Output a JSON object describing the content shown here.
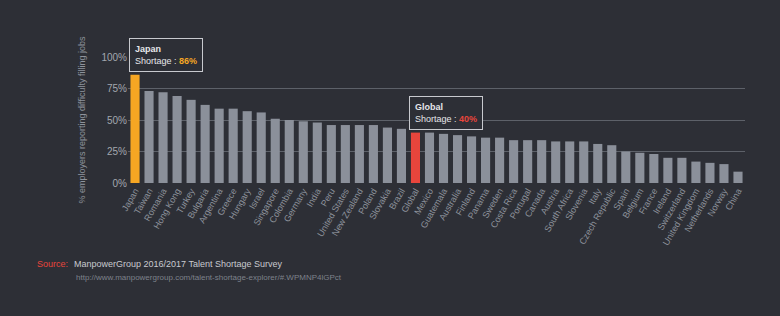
{
  "chart_data": {
    "type": "bar",
    "y_label": "% employers reporting difficulty filling jobs",
    "categories": [
      "Japan",
      "Taiwan",
      "Romania",
      "Hong Kong",
      "Turkey",
      "Bulgaria",
      "Argentina",
      "Greece",
      "Hungary",
      "Israel",
      "Singapore",
      "Colombia",
      "Germany",
      "India",
      "Peru",
      "United States",
      "New Zealand",
      "Poland",
      "Slovakia",
      "Brazil",
      "Global",
      "Mexico",
      "Guatemala",
      "Australia",
      "Finland",
      "Panama",
      "Sweden",
      "Costa Rica",
      "Portugal",
      "Canada",
      "Austria",
      "South Africa",
      "Slovenia",
      "Italy",
      "Czech Republic",
      "Spain",
      "Belgium",
      "France",
      "Ireland",
      "Switzerland",
      "United Kingdom",
      "Netherlands",
      "Norway",
      "China"
    ],
    "values": [
      86,
      73,
      72,
      69,
      66,
      62,
      59,
      59,
      57,
      56,
      51,
      50,
      49,
      48,
      46,
      46,
      46,
      46,
      44,
      43,
      40,
      40,
      39,
      38,
      37,
      36,
      36,
      34,
      34,
      34,
      33,
      33,
      33,
      31,
      30,
      25,
      24,
      23,
      20,
      20,
      17,
      16,
      15,
      9
    ],
    "colors": [
      "#f5a623",
      "#8b909a",
      "#8b909a",
      "#8b909a",
      "#8b909a",
      "#8b909a",
      "#8b909a",
      "#8b909a",
      "#8b909a",
      "#8b909a",
      "#8b909a",
      "#8b909a",
      "#8b909a",
      "#8b909a",
      "#8b909a",
      "#8b909a",
      "#8b909a",
      "#8b909a",
      "#8b909a",
      "#8b909a",
      "#e8453c",
      "#8b909a",
      "#8b909a",
      "#8b909a",
      "#8b909a",
      "#8b909a",
      "#8b909a",
      "#8b909a",
      "#8b909a",
      "#8b909a",
      "#8b909a",
      "#8b909a",
      "#8b909a",
      "#8b909a",
      "#8b909a",
      "#8b909a",
      "#8b909a",
      "#8b909a",
      "#8b909a",
      "#8b909a",
      "#8b909a",
      "#8b909a",
      "#8b909a",
      "#8b909a"
    ],
    "ylim": [
      0,
      100
    ],
    "yticks": [
      {
        "value": 0,
        "label": "0%"
      },
      {
        "value": 25,
        "label": "25%"
      },
      {
        "value": 50,
        "label": "50%"
      },
      {
        "value": 75,
        "label": "75%"
      },
      {
        "value": 100,
        "label": "100%"
      }
    ],
    "grid": true,
    "annotations": [
      {
        "category": "Japan",
        "title": "Japan",
        "text": "Shortage :",
        "value_label": "86%"
      },
      {
        "category": "Global",
        "title": "Global",
        "text": "Shortage :",
        "value_label": "40%"
      }
    ],
    "source": {
      "label": "Source:",
      "text": "ManpowerGroup 2016/2017 Talent Shortage Survey",
      "url": "http://www.manpowergroup.com/talent-shortage-explorer/#.WPMNP4lGPct"
    }
  }
}
